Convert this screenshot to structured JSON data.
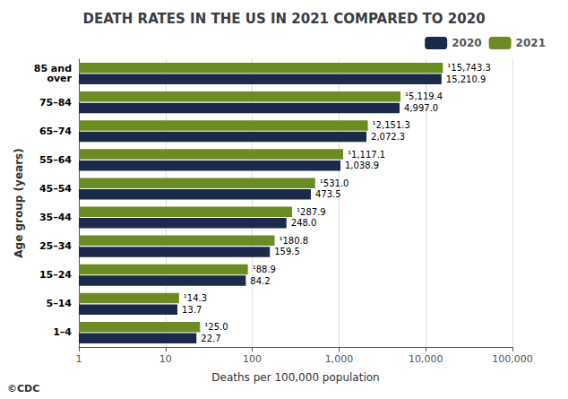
{
  "chart_data": {
    "type": "bar",
    "orientation": "horizontal",
    "title": "DEATH RATES IN THE US IN 2021 COMPARED TO 2020",
    "xlabel": "Deaths per 100,000 population",
    "ylabel": "Age group (years)",
    "categories": [
      "1–4",
      "5–14",
      "15–24",
      "25–34",
      "35–44",
      "45–54",
      "55–64",
      "65–74",
      "75–84",
      "85 and\nover"
    ],
    "series": [
      {
        "name": "2020",
        "color": "#1b2a4a",
        "values": [
          22.7,
          13.7,
          84.2,
          159.5,
          248.0,
          473.5,
          1038.9,
          2072.3,
          4997.0,
          15210.9
        ],
        "value_labels": [
          "22.7",
          "13.7",
          "84.2",
          "159.5",
          "248.0",
          "473.5",
          "1,038.9",
          "2,072.3",
          "4,997.0",
          "15,210.9"
        ]
      },
      {
        "name": "2021",
        "color": "#6b8c23",
        "values": [
          25.0,
          14.3,
          88.9,
          180.8,
          287.9,
          531.0,
          1117.1,
          2151.3,
          5119.4,
          15743.3
        ],
        "value_labels": [
          "¹25.0",
          "¹14.3",
          "¹88.9",
          "¹180.8",
          "¹287.9",
          "¹531.0",
          "¹1,117.1",
          "¹2,151.3",
          "¹5,119.4",
          "¹15,743.3"
        ]
      }
    ],
    "log": "x",
    "xlim": [
      1,
      100000
    ],
    "xticks": [
      1,
      10,
      100,
      {
        "value": 1000,
        "label": "1,000"
      },
      {
        "value": 10000,
        "label": "10,000"
      },
      {
        "value": 100000,
        "label": "100,000"
      }
    ],
    "grid": true,
    "legend": "upper right",
    "data_labels": true,
    "annotations": [
      "©CDC"
    ]
  }
}
